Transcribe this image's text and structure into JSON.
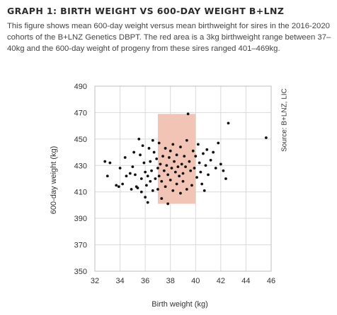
{
  "title": "GRAPH 1: BIRTH WEIGHT VS 600-DAY WEIGHT B+LNZ",
  "description": "This figure shows mean 600-day weight versus mean birthweight for sires in the 2016-2020 cohorts of the B+LNZ Genetics DBPT. The red area is a 3kg birthweight range between 37–40kg and the 600-day weight of progeny from these sires ranged 401–469kg.",
  "source": "Source: B+LNZ, LIC",
  "colors": {
    "highlight": "#f2c4b5",
    "point": "#111111",
    "grid": "#d9d9d9"
  },
  "chart_data": {
    "type": "scatter",
    "xlabel": "Birth weight (kg)",
    "ylabel": "600-day weight (kg)",
    "xlim": [
      32,
      46
    ],
    "ylim": [
      350,
      490
    ],
    "xticks": [
      32,
      34,
      36,
      38,
      40,
      42,
      44,
      46
    ],
    "yticks": [
      350,
      370,
      390,
      410,
      430,
      450,
      470,
      490
    ],
    "grid": true,
    "highlight_region": {
      "x": [
        37,
        40
      ],
      "y": [
        401,
        469
      ]
    },
    "points": [
      [
        32.8,
        433
      ],
      [
        33.0,
        422
      ],
      [
        33.2,
        432
      ],
      [
        33.7,
        415
      ],
      [
        33.9,
        414
      ],
      [
        34.0,
        428
      ],
      [
        34.2,
        416
      ],
      [
        34.4,
        436
      ],
      [
        34.5,
        422
      ],
      [
        34.8,
        424
      ],
      [
        34.9,
        412
      ],
      [
        35.0,
        429
      ],
      [
        35.1,
        440
      ],
      [
        35.2,
        423
      ],
      [
        35.3,
        414
      ],
      [
        35.4,
        413
      ],
      [
        35.5,
        450
      ],
      [
        35.6,
        438
      ],
      [
        35.7,
        420
      ],
      [
        35.7,
        410
      ],
      [
        35.8,
        445
      ],
      [
        35.9,
        432
      ],
      [
        36.0,
        425
      ],
      [
        36.0,
        406
      ],
      [
        36.1,
        415
      ],
      [
        36.2,
        422
      ],
      [
        36.2,
        402
      ],
      [
        36.3,
        443
      ],
      [
        36.4,
        433
      ],
      [
        36.4,
        418
      ],
      [
        36.5,
        426
      ],
      [
        36.6,
        411
      ],
      [
        36.6,
        449
      ],
      [
        36.7,
        440
      ],
      [
        36.8,
        420
      ],
      [
        36.9,
        435
      ],
      [
        37.0,
        428
      ],
      [
        37.0,
        412
      ],
      [
        37.1,
        447
      ],
      [
        37.1,
        422
      ],
      [
        37.2,
        431
      ],
      [
        37.3,
        405
      ],
      [
        37.3,
        418
      ],
      [
        37.4,
        437
      ],
      [
        37.5,
        426
      ],
      [
        37.6,
        443
      ],
      [
        37.6,
        414
      ],
      [
        37.7,
        430
      ],
      [
        37.8,
        423
      ],
      [
        37.8,
        401
      ],
      [
        37.9,
        436
      ],
      [
        38.0,
        441
      ],
      [
        38.0,
        419
      ],
      [
        38.1,
        428
      ],
      [
        38.2,
        411
      ],
      [
        38.2,
        446
      ],
      [
        38.3,
        433
      ],
      [
        38.4,
        425
      ],
      [
        38.5,
        416
      ],
      [
        38.5,
        438
      ],
      [
        38.6,
        429
      ],
      [
        38.7,
        422
      ],
      [
        38.8,
        444
      ],
      [
        38.8,
        409
      ],
      [
        38.9,
        431
      ],
      [
        39.0,
        424
      ],
      [
        39.0,
        418
      ],
      [
        39.1,
        437
      ],
      [
        39.2,
        429
      ],
      [
        39.3,
        449
      ],
      [
        39.3,
        412
      ],
      [
        39.4,
        469
      ],
      [
        39.5,
        433
      ],
      [
        39.6,
        426
      ],
      [
        39.7,
        415
      ],
      [
        39.8,
        441
      ],
      [
        39.9,
        428
      ],
      [
        40.0,
        437
      ],
      [
        40.1,
        421
      ],
      [
        40.2,
        446
      ],
      [
        40.3,
        432
      ],
      [
        40.4,
        425
      ],
      [
        40.5,
        416
      ],
      [
        40.6,
        439
      ],
      [
        40.7,
        411
      ],
      [
        40.8,
        430
      ],
      [
        40.9,
        442
      ],
      [
        41.0,
        423
      ],
      [
        41.2,
        434
      ],
      [
        41.4,
        440
      ],
      [
        41.6,
        428
      ],
      [
        41.8,
        447
      ],
      [
        42.0,
        431
      ],
      [
        42.2,
        426
      ],
      [
        42.4,
        420
      ],
      [
        42.6,
        462
      ],
      [
        45.6,
        451
      ]
    ]
  }
}
